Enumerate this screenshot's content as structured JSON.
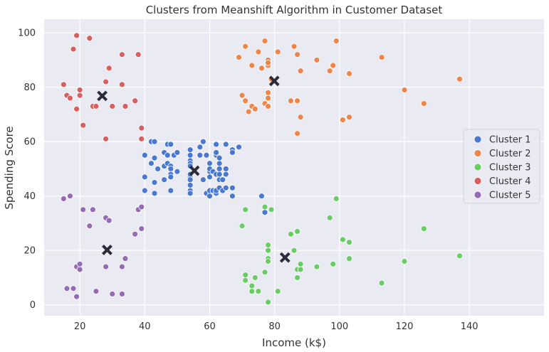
{
  "chart_data": {
    "type": "scatter",
    "title": "Clusters from Meanshift Algorithm in Customer Dataset",
    "xlabel": "Income (k$)",
    "ylabel": "Spending Score",
    "xlim": [
      9,
      163
    ],
    "ylim": [
      -4,
      105
    ],
    "xticks": [
      20,
      40,
      60,
      80,
      100,
      120,
      140
    ],
    "yticks": [
      0,
      20,
      40,
      60,
      80,
      100
    ],
    "grid": true,
    "legend_position": "right",
    "background_color": "#eaeaf2",
    "series": [
      {
        "name": "Cluster 1",
        "color": "#4878d0",
        "points": [
          [
            40,
            55
          ],
          [
            40,
            47
          ],
          [
            40,
            42
          ],
          [
            42,
            52
          ],
          [
            42,
            60
          ],
          [
            43,
            60
          ],
          [
            43,
            54
          ],
          [
            43,
            45
          ],
          [
            43,
            41
          ],
          [
            44,
            50
          ],
          [
            46,
            51
          ],
          [
            46,
            46
          ],
          [
            46,
            56
          ],
          [
            47,
            55
          ],
          [
            47,
            52
          ],
          [
            47,
            59
          ],
          [
            48,
            51
          ],
          [
            48,
            59
          ],
          [
            48,
            50
          ],
          [
            48,
            48
          ],
          [
            48,
            47
          ],
          [
            48,
            42
          ],
          [
            49,
            55
          ],
          [
            50,
            56
          ],
          [
            50,
            49
          ],
          [
            54,
            47
          ],
          [
            54,
            53
          ],
          [
            54,
            48
          ],
          [
            54,
            52
          ],
          [
            54,
            42
          ],
          [
            54,
            51
          ],
          [
            54,
            55
          ],
          [
            54,
            41
          ],
          [
            54,
            44
          ],
          [
            54,
            57
          ],
          [
            54,
            46
          ],
          [
            57,
            58
          ],
          [
            57,
            55
          ],
          [
            58,
            60
          ],
          [
            58,
            46
          ],
          [
            59,
            55
          ],
          [
            59,
            41
          ],
          [
            60,
            49
          ],
          [
            60,
            40
          ],
          [
            60,
            42
          ],
          [
            60,
            52
          ],
          [
            60,
            47
          ],
          [
            60,
            50
          ],
          [
            61,
            42
          ],
          [
            61,
            49
          ],
          [
            62,
            41
          ],
          [
            62,
            48
          ],
          [
            62,
            59
          ],
          [
            62,
            55
          ],
          [
            62,
            56
          ],
          [
            62,
            42
          ],
          [
            63,
            50
          ],
          [
            63,
            46
          ],
          [
            63,
            43
          ],
          [
            63,
            48
          ],
          [
            63,
            52
          ],
          [
            63,
            54
          ],
          [
            64,
            42
          ],
          [
            64,
            46
          ],
          [
            65,
            48
          ],
          [
            65,
            50
          ],
          [
            65,
            43
          ],
          [
            65,
            59
          ],
          [
            67,
            43
          ],
          [
            67,
            57
          ],
          [
            67,
            56
          ],
          [
            67,
            40
          ],
          [
            69,
            58
          ],
          [
            76,
            40
          ],
          [
            77,
            34
          ]
        ]
      },
      {
        "name": "Cluster 2",
        "color": "#ee854a",
        "points": [
          [
            69,
            91
          ],
          [
            70,
            77
          ],
          [
            71,
            95
          ],
          [
            71,
            75
          ],
          [
            72,
            71
          ],
          [
            73,
            88
          ],
          [
            73,
            73
          ],
          [
            74,
            72
          ],
          [
            75,
            93
          ],
          [
            76,
            87
          ],
          [
            77,
            97
          ],
          [
            77,
            74
          ],
          [
            78,
            90
          ],
          [
            78,
            88
          ],
          [
            78,
            89
          ],
          [
            78,
            78
          ],
          [
            78,
            73
          ],
          [
            78,
            76
          ],
          [
            79,
            83
          ],
          [
            81,
            93
          ],
          [
            85,
            75
          ],
          [
            86,
            95
          ],
          [
            87,
            63
          ],
          [
            87,
            75
          ],
          [
            87,
            92
          ],
          [
            88,
            69
          ],
          [
            88,
            86
          ],
          [
            93,
            90
          ],
          [
            97,
            86
          ],
          [
            98,
            88
          ],
          [
            99,
            97
          ],
          [
            101,
            68
          ],
          [
            103,
            85
          ],
          [
            103,
            69
          ],
          [
            113,
            91
          ],
          [
            120,
            79
          ],
          [
            126,
            74
          ],
          [
            137,
            83
          ]
        ]
      },
      {
        "name": "Cluster 3",
        "color": "#6acc64",
        "points": [
          [
            70,
            29
          ],
          [
            71,
            11
          ],
          [
            71,
            9
          ],
          [
            71,
            35
          ],
          [
            73,
            5
          ],
          [
            73,
            7
          ],
          [
            74,
            10
          ],
          [
            75,
            5
          ],
          [
            77,
            12
          ],
          [
            77,
            36
          ],
          [
            78,
            22
          ],
          [
            78,
            17
          ],
          [
            78,
            20
          ],
          [
            78,
            16
          ],
          [
            78,
            1
          ],
          [
            79,
            35
          ],
          [
            81,
            5
          ],
          [
            85,
            26
          ],
          [
            86,
            20
          ],
          [
            87,
            27
          ],
          [
            87,
            13
          ],
          [
            87,
            10
          ],
          [
            88,
            13
          ],
          [
            88,
            15
          ],
          [
            93,
            14
          ],
          [
            97,
            32
          ],
          [
            98,
            15
          ],
          [
            99,
            39
          ],
          [
            101,
            24
          ],
          [
            103,
            17
          ],
          [
            103,
            23
          ],
          [
            113,
            8
          ],
          [
            120,
            16
          ],
          [
            126,
            28
          ],
          [
            137,
            18
          ]
        ]
      },
      {
        "name": "Cluster 4",
        "color": "#d65f5f",
        "points": [
          [
            15,
            81
          ],
          [
            16,
            77
          ],
          [
            17,
            76
          ],
          [
            18,
            94
          ],
          [
            19,
            72
          ],
          [
            19,
            99
          ],
          [
            20,
            77
          ],
          [
            20,
            79
          ],
          [
            21,
            66
          ],
          [
            23,
            98
          ],
          [
            24,
            73
          ],
          [
            25,
            73
          ],
          [
            28,
            82
          ],
          [
            28,
            61
          ],
          [
            29,
            87
          ],
          [
            30,
            73
          ],
          [
            33,
            92
          ],
          [
            33,
            81
          ],
          [
            34,
            73
          ],
          [
            37,
            75
          ],
          [
            38,
            92
          ],
          [
            39,
            61
          ],
          [
            39,
            65
          ]
        ]
      },
      {
        "name": "Cluster 5",
        "color": "#956cb4",
        "points": [
          [
            15,
            39
          ],
          [
            16,
            6
          ],
          [
            17,
            40
          ],
          [
            18,
            6
          ],
          [
            19,
            3
          ],
          [
            19,
            14
          ],
          [
            20,
            15
          ],
          [
            20,
            13
          ],
          [
            21,
            35
          ],
          [
            23,
            29
          ],
          [
            24,
            35
          ],
          [
            25,
            5
          ],
          [
            28,
            14
          ],
          [
            28,
            32
          ],
          [
            29,
            31
          ],
          [
            30,
            4
          ],
          [
            33,
            4
          ],
          [
            33,
            14
          ],
          [
            34,
            17
          ],
          [
            37,
            26
          ],
          [
            38,
            35
          ],
          [
            39,
            28
          ],
          [
            39,
            36
          ]
        ]
      }
    ],
    "centroids": {
      "color": "#2b2b3a",
      "marker": "x",
      "points": [
        [
          55.3,
          49.3
        ],
        [
          79.9,
          82.3
        ],
        [
          83.2,
          17.4
        ],
        [
          26.9,
          76.8
        ],
        [
          28.4,
          20.2
        ]
      ]
    }
  }
}
